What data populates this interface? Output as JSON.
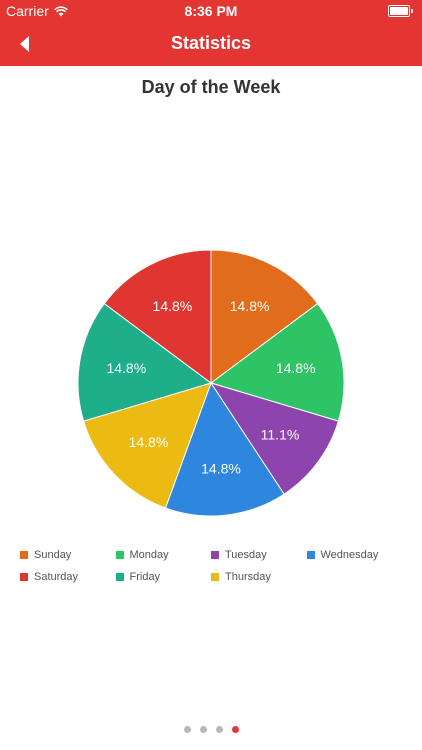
{
  "status_bar": {
    "carrier": "Carrier",
    "time": "8:36 PM"
  },
  "nav": {
    "title": "Statistics",
    "back_icon": "chevron-left-icon"
  },
  "colors": {
    "accent": "#e33531"
  },
  "chart_data": {
    "type": "pie",
    "title": "Day of the Week",
    "legend_position": "bottom",
    "slices": [
      {
        "label": "Sunday",
        "value": 14.8,
        "display": "14.8%",
        "color": "#e06c1c"
      },
      {
        "label": "Monday",
        "value": 14.8,
        "display": "14.8%",
        "color": "#2ec466"
      },
      {
        "label": "Tuesday",
        "value": 11.1,
        "display": "11.1%",
        "color": "#8e44ad"
      },
      {
        "label": "Wednesday",
        "value": 14.8,
        "display": "14.8%",
        "color": "#2e86de"
      },
      {
        "label": "Thursday",
        "value": 14.8,
        "display": "14.8%",
        "color": "#ebbb13"
      },
      {
        "label": "Friday",
        "value": 14.8,
        "display": "14.8%",
        "color": "#1fae8a"
      },
      {
        "label": "Saturday",
        "value": 14.8,
        "display": "14.8%",
        "color": "#e03632"
      }
    ],
    "legend_rows": [
      [
        "Sunday",
        "Monday",
        "Tuesday",
        "Wednesday"
      ],
      [
        "Saturday",
        "Friday",
        "Thursday"
      ]
    ]
  },
  "pager": {
    "count": 4,
    "active_index": 3
  }
}
